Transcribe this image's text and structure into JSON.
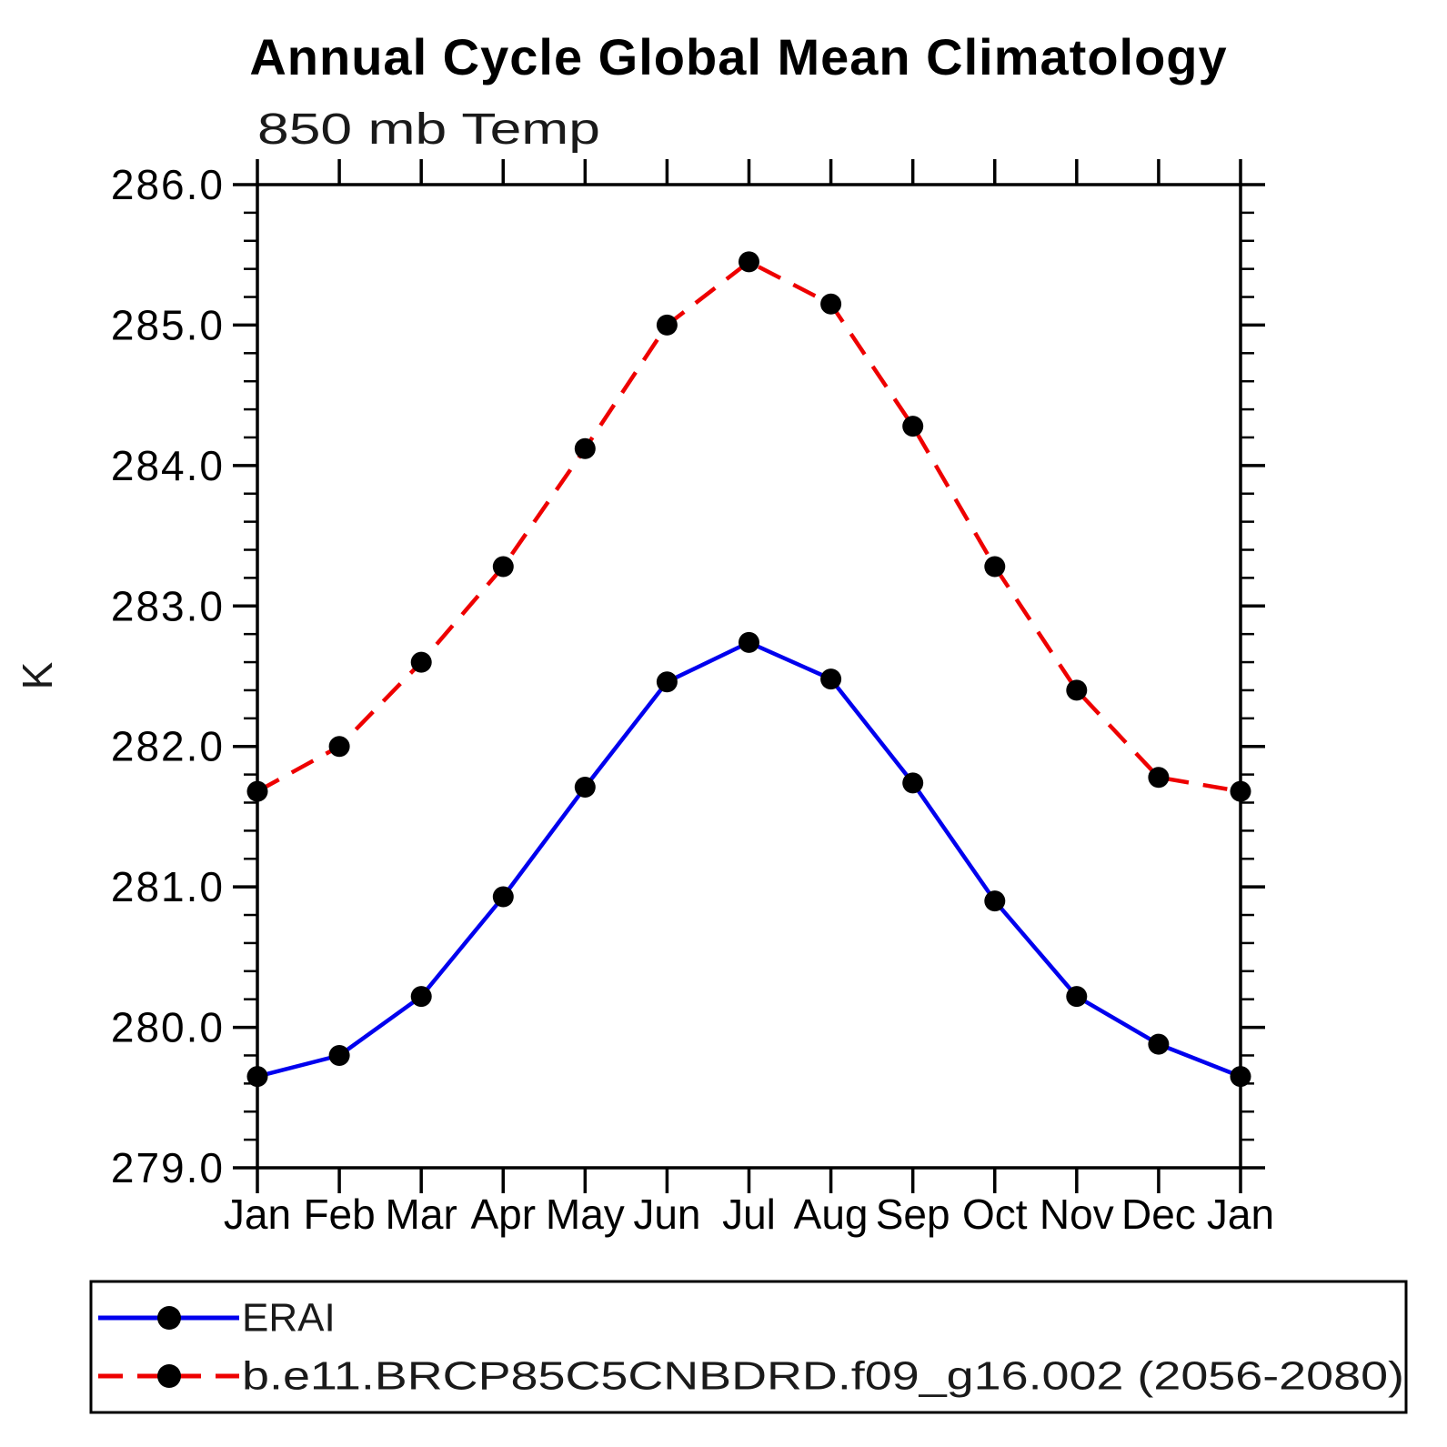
{
  "chart": {
    "title": "Annual Cycle Global Mean Climatology",
    "subtitle": "850 mb Temp",
    "ylabel": "K"
  },
  "legend": {
    "entries": [
      {
        "label": "ERAI"
      },
      {
        "label": "b.e11.BRCP85C5CNBDRD.f09_g16.002 (2056-2080)"
      }
    ]
  },
  "chart_data": {
    "type": "line",
    "title": "Annual Cycle Global Mean Climatology",
    "subtitle": "850 mb Temp",
    "xlabel": "",
    "ylabel": "K",
    "categories": [
      "Jan",
      "Feb",
      "Mar",
      "Apr",
      "May",
      "Jun",
      "Jul",
      "Aug",
      "Sep",
      "Oct",
      "Nov",
      "Dec",
      "Jan"
    ],
    "series": [
      {
        "name": "ERAI",
        "color": "#0000ee",
        "line_style": "solid",
        "marker": "filled-circle",
        "marker_color": "#000000",
        "values": [
          279.65,
          279.8,
          280.22,
          280.93,
          281.71,
          282.46,
          282.74,
          282.48,
          281.74,
          280.9,
          280.22,
          279.88,
          279.65
        ]
      },
      {
        "name": "b.e11.BRCP85C5CNBDRD.f09_g16.002 (2056-2080)",
        "color": "#ee0000",
        "line_style": "dashed",
        "marker": "filled-circle",
        "marker_color": "#000000",
        "values": [
          281.68,
          282.0,
          282.6,
          283.28,
          284.12,
          285.0,
          285.45,
          285.15,
          284.28,
          283.28,
          282.4,
          281.78,
          281.68
        ]
      }
    ],
    "ylim": [
      279.0,
      286.0
    ],
    "y_major_step": 1.0,
    "y_minor_step": 0.2,
    "y_tick_labels": [
      "279.0",
      "280.0",
      "281.0",
      "282.0",
      "283.0",
      "284.0",
      "285.0",
      "286.0"
    ],
    "grid": false,
    "legend_position": "bottom"
  }
}
